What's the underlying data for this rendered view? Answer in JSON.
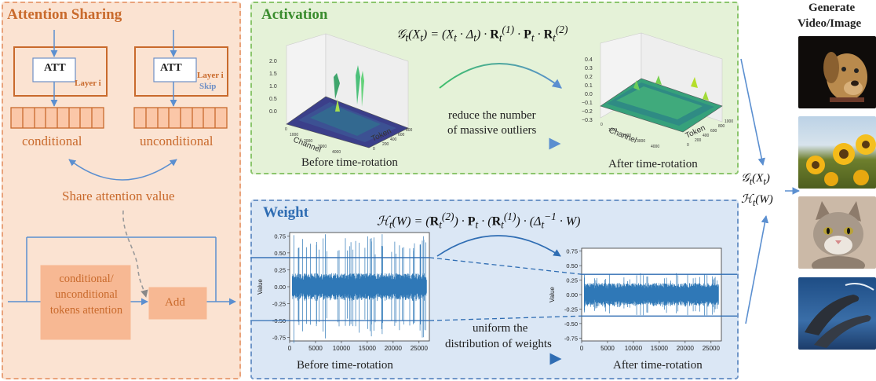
{
  "attention_sharing": {
    "title": "Attention Sharing",
    "att_label": "ATT",
    "layer_label_left": "Layer i",
    "layer_label_right": "Layer i",
    "skip_label": "Skip",
    "conditional": "conditional",
    "unconditional": "unconditional",
    "share_label": "Share attention value",
    "tokens_attention": "conditional/ unconditional tokens attention",
    "add_label": "Add"
  },
  "activation": {
    "title": "Activation",
    "formula_lhs": "𝒢",
    "reduce_text_1": "reduce the number",
    "reduce_text_2": "of massive outliers",
    "before_caption": "Before time-rotation",
    "after_caption": "After time-rotation",
    "before_ticks_z": [
      "2.0",
      "1.5",
      "1.0",
      "0.5",
      "0.0"
    ],
    "after_ticks_z": [
      "0.4",
      "0.3",
      "0.2",
      "0.1",
      "0.0",
      "−0.1",
      "−0.2",
      "−0.3"
    ],
    "channel_label": "Channel",
    "token_label": "Token",
    "channel_ticks": [
      "0",
      "1000",
      "2000",
      "3000",
      "4000"
    ],
    "token_ticks": [
      "0",
      "200",
      "400",
      "600",
      "800",
      "1000"
    ]
  },
  "weight": {
    "title": "Weight",
    "uniform_text_1": "uniform the",
    "uniform_text_2": "distribution of weights",
    "before_caption": "Before time-rotation",
    "after_caption": "After time-rotation",
    "y_label": "Value"
  },
  "generate": {
    "title_1": "Generate",
    "title_2": "Video/Image"
  },
  "chart_data": [
    {
      "type": "line",
      "title": "",
      "xlabel": "",
      "ylabel": "Value",
      "xlim": [
        0,
        27000
      ],
      "ylim": [
        -0.8,
        0.8
      ],
      "x_ticks": [
        0,
        5000,
        10000,
        15000,
        20000,
        25000
      ],
      "y_ticks": [
        0.75,
        0.5,
        0.25,
        0.0,
        -0.25,
        -0.5,
        -0.75
      ],
      "series": [
        {
          "name": "",
          "envelope_core": 0.2,
          "envelope_peak": 0.78
        }
      ],
      "reference_lines_y": [
        0.43,
        -0.5
      ],
      "caption": "Before time-rotation"
    },
    {
      "type": "line",
      "title": "",
      "xlabel": "",
      "ylabel": "Value",
      "xlim": [
        0,
        27000
      ],
      "ylim": [
        -0.8,
        0.8
      ],
      "x_ticks": [
        0,
        5000,
        10000,
        15000,
        20000,
        25000
      ],
      "y_ticks": [
        0.75,
        0.5,
        0.25,
        0.0,
        -0.25,
        -0.5,
        -0.75
      ],
      "series": [
        {
          "name": "",
          "envelope_core": 0.2,
          "envelope_peak": 0.38
        }
      ],
      "reference_lines_y": [
        0.35,
        -0.37
      ],
      "caption": "After time-rotation"
    }
  ]
}
